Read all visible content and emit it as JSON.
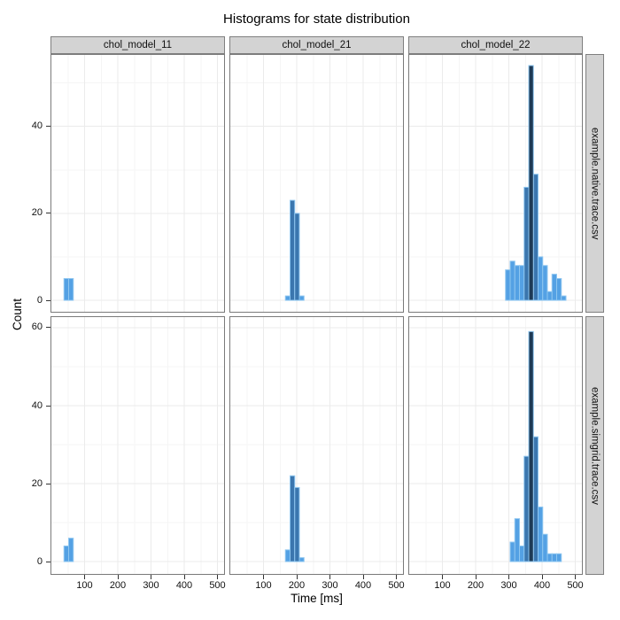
{
  "chart_data": {
    "type": "bar",
    "subtype": "faceted-histogram",
    "title": "Histograms for state distribution",
    "xlabel": "Time [ms]",
    "ylabel": "Count",
    "facet_cols": [
      "chol_model_11",
      "chol_model_21",
      "chol_model_22"
    ],
    "facet_rows": [
      "example.native.trace.csv",
      "example.simgrid.trace.csv"
    ],
    "x_ticks": [
      100,
      200,
      300,
      400,
      500
    ],
    "x_minor_ticks": [
      50,
      150,
      250,
      350,
      450
    ],
    "x_range": [
      0,
      520
    ],
    "bin_width_ms": 14,
    "grid": true,
    "legend": "none",
    "rows": [
      {
        "label": "example.native.trace.csv",
        "y_ticks": [
          0,
          20,
          40
        ],
        "y_minor_ticks": [
          10,
          30,
          50
        ],
        "y_range": [
          -2.64,
          56.45
        ],
        "panels": [
          {
            "col": "chol_model_11",
            "bars": [
              {
                "x": 38,
                "h": 5,
                "c": "light"
              },
              {
                "x": 52,
                "h": 5,
                "c": "light"
              }
            ]
          },
          {
            "col": "chol_model_21",
            "bars": [
              {
                "x": 166,
                "h": 1,
                "c": "light"
              },
              {
                "x": 180,
                "h": 23,
                "c": "mid"
              },
              {
                "x": 194,
                "h": 20,
                "c": "mid"
              },
              {
                "x": 208,
                "h": 1,
                "c": "light"
              }
            ]
          },
          {
            "col": "chol_model_22",
            "bars": [
              {
                "x": 290,
                "h": 7,
                "c": "light"
              },
              {
                "x": 304,
                "h": 9,
                "c": "light"
              },
              {
                "x": 318,
                "h": 8,
                "c": "light"
              },
              {
                "x": 332,
                "h": 8,
                "c": "light"
              },
              {
                "x": 346,
                "h": 26,
                "c": "mid"
              },
              {
                "x": 360,
                "h": 54,
                "c": "dark"
              },
              {
                "x": 374,
                "h": 29,
                "c": "mid"
              },
              {
                "x": 388,
                "h": 10,
                "c": "light"
              },
              {
                "x": 402,
                "h": 8,
                "c": "light"
              },
              {
                "x": 416,
                "h": 2,
                "c": "light"
              },
              {
                "x": 430,
                "h": 6,
                "c": "light"
              },
              {
                "x": 444,
                "h": 5,
                "c": "light"
              },
              {
                "x": 458,
                "h": 1,
                "c": "light"
              }
            ]
          }
        ]
      },
      {
        "label": "example.simgrid.trace.csv",
        "y_ticks": [
          0,
          20,
          40,
          60
        ],
        "y_minor_ticks": [
          10,
          30,
          50
        ],
        "y_range": [
          -3.17,
          62.71
        ],
        "panels": [
          {
            "col": "chol_model_11",
            "bars": [
              {
                "x": 38,
                "h": 4,
                "c": "light"
              },
              {
                "x": 52,
                "h": 6,
                "c": "light"
              }
            ]
          },
          {
            "col": "chol_model_21",
            "bars": [
              {
                "x": 166,
                "h": 3,
                "c": "light"
              },
              {
                "x": 180,
                "h": 22,
                "c": "mid"
              },
              {
                "x": 194,
                "h": 19,
                "c": "mid"
              },
              {
                "x": 208,
                "h": 1,
                "c": "light"
              }
            ]
          },
          {
            "col": "chol_model_22",
            "bars": [
              {
                "x": 304,
                "h": 5,
                "c": "light"
              },
              {
                "x": 318,
                "h": 11,
                "c": "light"
              },
              {
                "x": 332,
                "h": 4,
                "c": "light"
              },
              {
                "x": 346,
                "h": 27,
                "c": "mid"
              },
              {
                "x": 360,
                "h": 59,
                "c": "dark"
              },
              {
                "x": 374,
                "h": 32,
                "c": "mid"
              },
              {
                "x": 388,
                "h": 14,
                "c": "light"
              },
              {
                "x": 402,
                "h": 7,
                "c": "light"
              },
              {
                "x": 416,
                "h": 2,
                "c": "light"
              },
              {
                "x": 430,
                "h": 2,
                "c": "light"
              },
              {
                "x": 444,
                "h": 2,
                "c": "light"
              }
            ]
          }
        ]
      }
    ],
    "colors": {
      "bar_light": "#54A1E4",
      "bar_mid": "#3B76AE",
      "bar_dark": "#1E3A55",
      "bar_stroke": "#8EC6F0",
      "strip_bg": "#D3D3D3",
      "strip_border": "#7F7F7F",
      "panel_border": "#7A7A7A",
      "grid_major": "#EBEBEB",
      "grid_minor": "#F5F5F5",
      "tick_color": "#333333"
    }
  }
}
